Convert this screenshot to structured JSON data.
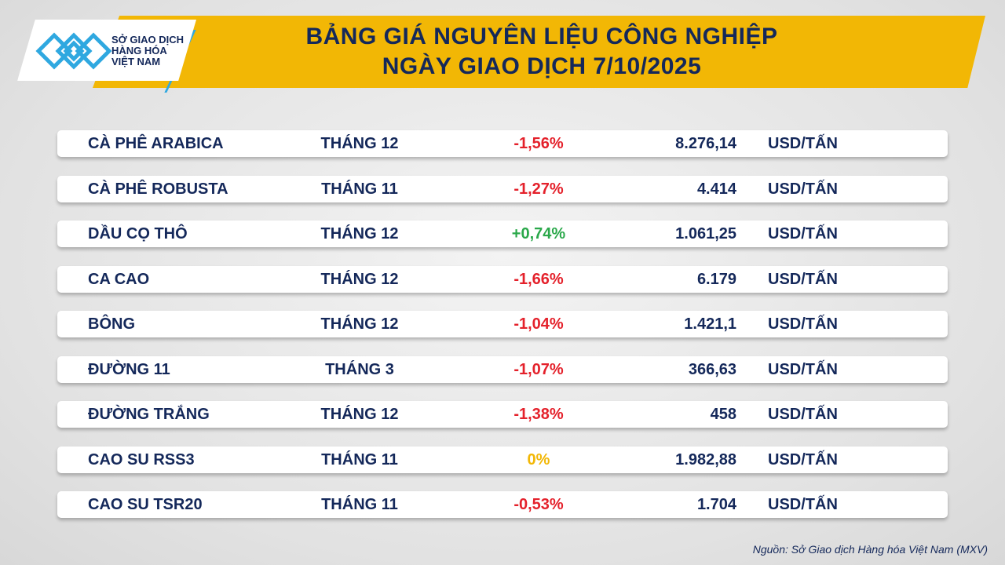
{
  "header": {
    "title_line1": "BẢNG GIÁ NGUYÊN LIỆU CÔNG NGHIỆP",
    "title_line2": "NGÀY GIAO DỊCH 7/10/2025"
  },
  "logo": {
    "line1": "SỞ GIAO DỊCH",
    "line2": "HÀNG HÓA",
    "line3": "VIỆT NAM"
  },
  "colors": {
    "down": "#e4212b",
    "up": "#2aa84a",
    "flat": "#f2b705",
    "text": "#14285a"
  },
  "rows": [
    {
      "name": "CÀ PHÊ ARABICA",
      "month": "THÁNG 12",
      "change": "-1,56%",
      "trend": "down",
      "price": "8.276,14",
      "unit": "USD/TẤN"
    },
    {
      "name": "CÀ PHÊ ROBUSTA",
      "month": "THÁNG 11",
      "change": "-1,27%",
      "trend": "down",
      "price": "4.414",
      "unit": "USD/TẤN"
    },
    {
      "name": "DẦU CỌ THÔ",
      "month": "THÁNG 12",
      "change": "+0,74%",
      "trend": "up",
      "price": "1.061,25",
      "unit": "USD/TẤN"
    },
    {
      "name": "CA CAO",
      "month": "THÁNG 12",
      "change": "-1,66%",
      "trend": "down",
      "price": "6.179",
      "unit": "USD/TẤN"
    },
    {
      "name": "BÔNG",
      "month": "THÁNG 12",
      "change": "-1,04%",
      "trend": "down",
      "price": "1.421,1",
      "unit": "USD/TẤN"
    },
    {
      "name": "ĐƯỜNG 11",
      "month": "THÁNG 3",
      "change": "-1,07%",
      "trend": "down",
      "price": "366,63",
      "unit": "USD/TẤN"
    },
    {
      "name": "ĐƯỜNG TRẮNG",
      "month": "THÁNG 12",
      "change": "-1,38%",
      "trend": "down",
      "price": "458",
      "unit": "USD/TẤN"
    },
    {
      "name": "CAO SU RSS3",
      "month": "THÁNG 11",
      "change": "0%",
      "trend": "flat",
      "price": "1.982,88",
      "unit": "USD/TẤN"
    },
    {
      "name": "CAO SU TSR20",
      "month": "THÁNG 11",
      "change": "-0,53%",
      "trend": "down",
      "price": "1.704",
      "unit": "USD/TẤN"
    }
  ],
  "footer": {
    "source": "Nguồn: Sở Giao dịch Hàng hóa Việt Nam (MXV)"
  }
}
